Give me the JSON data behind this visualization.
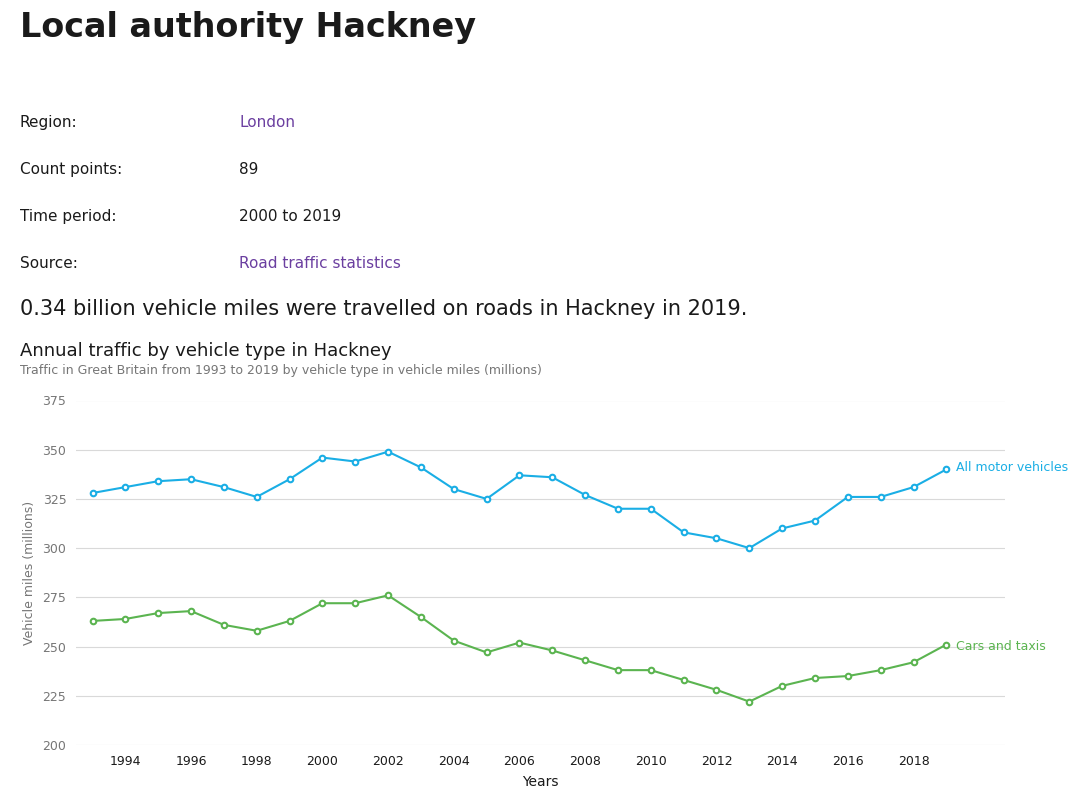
{
  "title": "Local authority Hackney",
  "region_label": "Region:",
  "region_value": "London",
  "count_points_label": "Count points:",
  "count_points_value": "89",
  "time_period_label": "Time period:",
  "time_period_value": "2000 to 2019",
  "source_label": "Source:",
  "source_value": "Road traffic statistics",
  "summary_text": "0.34 billion vehicle miles were travelled on roads in Hackney in 2019.",
  "chart_title": "Annual traffic by vehicle type in Hackney",
  "chart_subtitle": "Traffic in Great Britain from 1993 to 2019 by vehicle type in vehicle miles (millions)",
  "xlabel": "Years",
  "ylabel": "Vehicle miles (millions)",
  "ylim": [
    200,
    375
  ],
  "yticks": [
    200,
    225,
    250,
    275,
    300,
    325,
    350,
    375
  ],
  "background_color": "#ffffff",
  "all_motor_vehicles": {
    "years": [
      1993,
      1994,
      1995,
      1996,
      1997,
      1998,
      1999,
      2000,
      2001,
      2002,
      2003,
      2004,
      2005,
      2006,
      2007,
      2008,
      2009,
      2010,
      2011,
      2012,
      2013,
      2014,
      2015,
      2016,
      2017,
      2018,
      2019
    ],
    "values": [
      328,
      331,
      334,
      335,
      331,
      326,
      335,
      346,
      344,
      349,
      341,
      330,
      325,
      337,
      336,
      327,
      320,
      320,
      308,
      305,
      300,
      310,
      314,
      326,
      326,
      331,
      340
    ],
    "color": "#1aaee5",
    "label": "All motor vehicles"
  },
  "cars_and_taxis": {
    "years": [
      1993,
      1994,
      1995,
      1996,
      1997,
      1998,
      1999,
      2000,
      2001,
      2002,
      2003,
      2004,
      2005,
      2006,
      2007,
      2008,
      2009,
      2010,
      2011,
      2012,
      2013,
      2014,
      2015,
      2016,
      2017,
      2018,
      2019
    ],
    "values": [
      263,
      264,
      267,
      268,
      261,
      258,
      263,
      272,
      272,
      276,
      265,
      253,
      247,
      252,
      248,
      243,
      238,
      238,
      233,
      228,
      222,
      230,
      234,
      235,
      238,
      242,
      251
    ],
    "color": "#5bb450",
    "label": "Cars and taxis"
  },
  "link_color": "#6b3fa0",
  "label_color_grey": "#767676",
  "grid_color": "#d9d9d9"
}
